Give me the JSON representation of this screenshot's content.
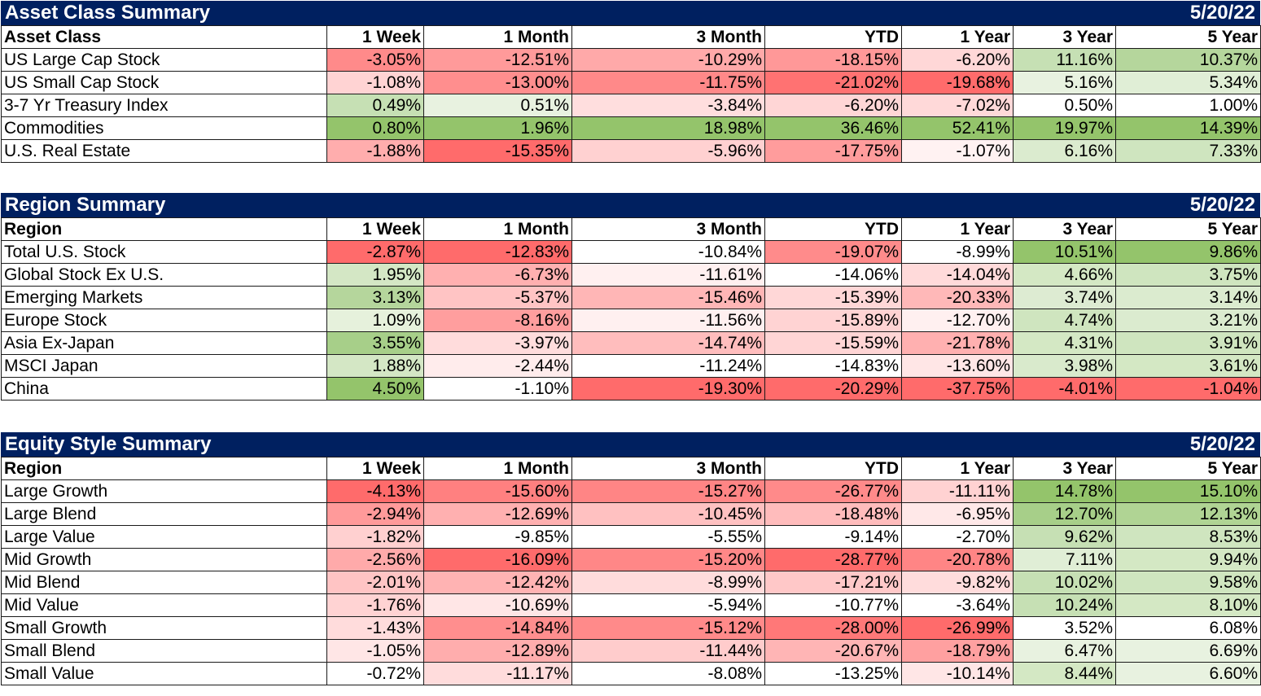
{
  "headers": [
    "1 Week",
    "1 Month",
    "3 Month",
    "YTD",
    "1 Year",
    "3 Year",
    "5 Year"
  ],
  "sections": [
    {
      "title": "Asset Class Summary",
      "date": "5/20/22",
      "first_col": "Asset Class",
      "rows": [
        {
          "label": "US Large Cap Stock",
          "values": [
            "-3.05%",
            "-12.51%",
            "-10.29%",
            "-18.15%",
            "-6.20%",
            "11.16%",
            "10.37%"
          ],
          "colors": [
            "#ff8a8a",
            "#ff9a9a",
            "#ffa9a9",
            "#ff9898",
            "#ffd7d7",
            "#c6e0b4",
            "#b5d69c"
          ]
        },
        {
          "label": "US Small Cap Stock",
          "values": [
            "-1.08%",
            "-13.00%",
            "-11.75%",
            "-21.02%",
            "-19.68%",
            "5.16%",
            "5.34%"
          ],
          "colors": [
            "#ffd3d3",
            "#ff8e8e",
            "#ff8989",
            "#ff7272",
            "#ff6b6b",
            "#e8f2e0",
            "#e0eed6"
          ]
        },
        {
          "label": "3-7 Yr Treasury Index",
          "values": [
            "0.49%",
            "0.51%",
            "-3.84%",
            "-6.20%",
            "-7.02%",
            "0.50%",
            "1.00%"
          ],
          "colors": [
            "#c6e0b4",
            "#e8f2e0",
            "#ffdede",
            "#ffd6d6",
            "#ffd9d9",
            "#ffffff",
            "#ffffff"
          ]
        },
        {
          "label": "Commodities",
          "values": [
            "0.80%",
            "1.96%",
            "18.98%",
            "36.46%",
            "52.41%",
            "19.97%",
            "14.39%"
          ],
          "colors": [
            "#94c46b",
            "#94c46b",
            "#94c46b",
            "#94c46b",
            "#94c46b",
            "#94c46b",
            "#94c46b"
          ]
        },
        {
          "label": "U.S. Real Estate",
          "values": [
            "-1.88%",
            "-15.35%",
            "-5.96%",
            "-17.75%",
            "-1.07%",
            "6.16%",
            "7.33%"
          ],
          "colors": [
            "#ffadad",
            "#ff6b6b",
            "#ffd1d1",
            "#ff9c9c",
            "#fff2f2",
            "#dbebcf",
            "#cfe5bf"
          ]
        }
      ]
    },
    {
      "title": "Region Summary",
      "date": "5/20/22",
      "first_col": "Region",
      "rows": [
        {
          "label": "Total U.S. Stock",
          "values": [
            "-2.87%",
            "-12.83%",
            "-10.84%",
            "-19.07%",
            "-8.99%",
            "10.51%",
            "9.86%"
          ],
          "colors": [
            "#ff6b6b",
            "#ff6b6b",
            "#ffffff",
            "#ff8b8b",
            "#ffffff",
            "#94c46b",
            "#94c46b"
          ]
        },
        {
          "label": "Global Stock Ex U.S.",
          "values": [
            "1.95%",
            "-6.73%",
            "-11.61%",
            "-14.06%",
            "-14.04%",
            "4.66%",
            "3.75%"
          ],
          "colors": [
            "#d4e7c5",
            "#ffb0b0",
            "#fff0f0",
            "#ffffff",
            "#ffdada",
            "#d4e8c4",
            "#cfe5bf"
          ]
        },
        {
          "label": "Emerging Markets",
          "values": [
            "3.13%",
            "-5.37%",
            "-15.46%",
            "-15.39%",
            "-20.33%",
            "3.74%",
            "3.14%"
          ],
          "colors": [
            "#b5d69c",
            "#ffc4c4",
            "#ffb6b6",
            "#ffd7d7",
            "#ffb8b8",
            "#ddebd2",
            "#dbebcf"
          ]
        },
        {
          "label": "Europe Stock",
          "values": [
            "1.09%",
            "-8.16%",
            "-11.56%",
            "-15.89%",
            "-12.70%",
            "4.74%",
            "3.21%"
          ],
          "colors": [
            "#e6f1dc",
            "#ff9e9e",
            "#fff0f0",
            "#ffd3d3",
            "#fff0f0",
            "#cfe5bf",
            "#dbebcf"
          ]
        },
        {
          "label": "Asia Ex-Japan",
          "values": [
            "3.55%",
            "-3.97%",
            "-14.74%",
            "-15.59%",
            "-21.78%",
            "4.31%",
            "3.91%"
          ],
          "colors": [
            "#a7cf89",
            "#ffdcdc",
            "#ffbdbd",
            "#ffd5d5",
            "#ffb0b0",
            "#d4e8c4",
            "#cfe5bf"
          ]
        },
        {
          "label": "MSCI Japan",
          "values": [
            "1.88%",
            "-2.44%",
            "-11.24%",
            "-14.83%",
            "-13.60%",
            "3.98%",
            "3.61%"
          ],
          "colors": [
            "#d4e7c5",
            "#ffecec",
            "#ffffff",
            "#ffffff",
            "#ffe6e6",
            "#d9eacc",
            "#d4e8c4"
          ]
        },
        {
          "label": "China",
          "values": [
            "4.50%",
            "-1.10%",
            "-19.30%",
            "-20.29%",
            "-37.75%",
            "-4.01%",
            "-1.04%"
          ],
          "colors": [
            "#94c46b",
            "#ffffff",
            "#ff6b6b",
            "#ff6b6b",
            "#ff6b6b",
            "#ff6b6b",
            "#ff6b6b"
          ]
        }
      ]
    },
    {
      "title": "Equity Style Summary",
      "date": "5/20/22",
      "first_col": "Region",
      "rows": [
        {
          "label": "Large Growth",
          "values": [
            "-4.13%",
            "-15.60%",
            "-15.27%",
            "-26.77%",
            "-11.11%",
            "14.78%",
            "15.10%"
          ],
          "colors": [
            "#ff6b6b",
            "#ff8080",
            "#ff8585",
            "#ff8a8a",
            "#ffd2d2",
            "#94c46b",
            "#94c46b"
          ]
        },
        {
          "label": "Large Blend",
          "values": [
            "-2.94%",
            "-12.69%",
            "-10.45%",
            "-18.48%",
            "-6.95%",
            "12.70%",
            "12.13%"
          ],
          "colors": [
            "#ff9a9a",
            "#ffb0b0",
            "#ffc1c1",
            "#ffbcbc",
            "#ffe8e8",
            "#a7cf89",
            "#b0d494"
          ]
        },
        {
          "label": "Large Value",
          "values": [
            "-1.82%",
            "-9.85%",
            "-5.55%",
            "-9.14%",
            "-2.70%",
            "9.62%",
            "8.53%"
          ],
          "colors": [
            "#ffd0d0",
            "#ffffff",
            "#ffffff",
            "#ffffff",
            "#ffffff",
            "#c6e0b4",
            "#cfe5bf"
          ]
        },
        {
          "label": "Mid Growth",
          "values": [
            "-2.56%",
            "-16.09%",
            "-15.20%",
            "-28.77%",
            "-20.78%",
            "7.11%",
            "9.94%"
          ],
          "colors": [
            "#ffaaaa",
            "#ff6b6b",
            "#ff8787",
            "#ff6b6b",
            "#ff8585",
            "#e0eed6",
            "#d4e8c4"
          ]
        },
        {
          "label": "Mid Blend",
          "values": [
            "-2.01%",
            "-12.42%",
            "-8.99%",
            "-17.21%",
            "-9.82%",
            "10.02%",
            "9.58%"
          ],
          "colors": [
            "#ffc4c4",
            "#ffb3b3",
            "#ffdcdc",
            "#ffc8c8",
            "#ffdcdc",
            "#c6e0b4",
            "#cfe5bf"
          ]
        },
        {
          "label": "Mid Value",
          "values": [
            "-1.76%",
            "-10.69%",
            "-5.94%",
            "-10.77%",
            "-3.64%",
            "10.24%",
            "8.10%"
          ],
          "colors": [
            "#ffd3d3",
            "#ffe6e6",
            "#ffffff",
            "#ffffff",
            "#ffffff",
            "#c6e0b4",
            "#d4e8c4"
          ]
        },
        {
          "label": "Small Growth",
          "values": [
            "-1.43%",
            "-14.84%",
            "-15.12%",
            "-28.00%",
            "-26.99%",
            "3.52%",
            "6.08%"
          ],
          "colors": [
            "#ffdcdc",
            "#ff8e8e",
            "#ff8a8a",
            "#ff7878",
            "#ff6b6b",
            "#ffffff",
            "#ffffff"
          ]
        },
        {
          "label": "Small Blend",
          "values": [
            "-1.05%",
            "-12.89%",
            "-11.44%",
            "-20.67%",
            "-18.79%",
            "6.47%",
            "6.69%"
          ],
          "colors": [
            "#ffe6e6",
            "#ffadad",
            "#ffcccc",
            "#ffb5b5",
            "#ffa0a0",
            "#e8f2e0",
            "#e8f2e0"
          ]
        },
        {
          "label": "Small Value",
          "values": [
            "-0.72%",
            "-11.17%",
            "-8.08%",
            "-13.25%",
            "-10.14%",
            "8.44%",
            "6.60%"
          ],
          "colors": [
            "#ffffff",
            "#ffdcdc",
            "#ffffff",
            "#ffffff",
            "#ffe6e6",
            "#d4e8c4",
            "#e8f2e0"
          ]
        }
      ]
    }
  ]
}
